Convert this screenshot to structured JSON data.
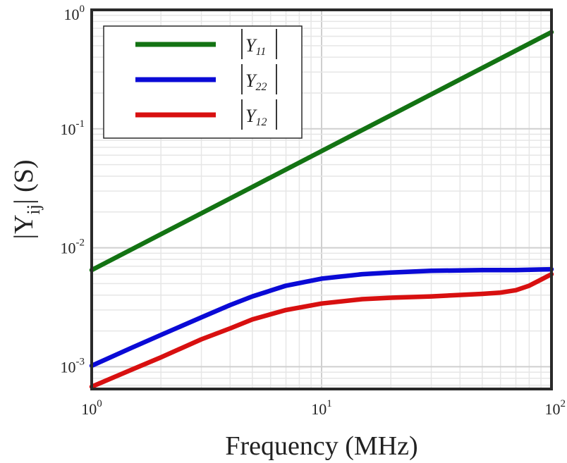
{
  "chart_data": {
    "type": "line",
    "xscale": "log",
    "yscale": "log",
    "xlim": [
      1,
      100
    ],
    "ylim": [
      0.00065,
      1
    ],
    "xlabel": "Frequency (MHz)",
    "ylabel": {
      "prefix": "|Y",
      "sub": "ij",
      "suffix": "| (S)"
    },
    "grid": true,
    "legend": "top-left",
    "x_ticks": [
      {
        "value": 1,
        "base": "10",
        "exp": "0"
      },
      {
        "value": 10,
        "base": "10",
        "exp": "1"
      },
      {
        "value": 100,
        "base": "10",
        "exp": "2"
      }
    ],
    "y_ticks": [
      {
        "value": 0.001,
        "base": "10",
        "exp": "-3"
      },
      {
        "value": 0.01,
        "base": "10",
        "exp": "-2"
      },
      {
        "value": 0.1,
        "base": "10",
        "exp": "-1"
      },
      {
        "value": 1,
        "base": "10",
        "exp": "0"
      }
    ],
    "series": [
      {
        "name": "|Y11|",
        "label_main": "Y",
        "label_sub": "11",
        "color": "#137313",
        "points": [
          [
            1,
            0.0065
          ],
          [
            2,
            0.013
          ],
          [
            5,
            0.0325
          ],
          [
            10,
            0.065
          ],
          [
            20,
            0.13
          ],
          [
            50,
            0.325
          ],
          [
            100,
            0.65
          ]
        ]
      },
      {
        "name": "|Y22|",
        "label_main": "Y",
        "label_sub": "22",
        "color": "#0a0ad6",
        "points": [
          [
            1,
            0.00102
          ],
          [
            1.5,
            0.00145
          ],
          [
            2,
            0.00185
          ],
          [
            3,
            0.0026
          ],
          [
            4,
            0.0033
          ],
          [
            5,
            0.0039
          ],
          [
            7,
            0.0048
          ],
          [
            10,
            0.0055
          ],
          [
            15,
            0.006
          ],
          [
            20,
            0.0062
          ],
          [
            30,
            0.0064
          ],
          [
            50,
            0.0065
          ],
          [
            70,
            0.0065
          ],
          [
            100,
            0.0066
          ]
        ]
      },
      {
        "name": "|Y12|",
        "label_main": "Y",
        "label_sub": "12",
        "color": "#d81010",
        "points": [
          [
            1,
            0.00068
          ],
          [
            1.5,
            0.00095
          ],
          [
            2,
            0.0012
          ],
          [
            3,
            0.0017
          ],
          [
            4,
            0.0021
          ],
          [
            5,
            0.0025
          ],
          [
            7,
            0.003
          ],
          [
            10,
            0.0034
          ],
          [
            15,
            0.0037
          ],
          [
            20,
            0.0038
          ],
          [
            30,
            0.0039
          ],
          [
            50,
            0.0041
          ],
          [
            60,
            0.0042
          ],
          [
            70,
            0.0044
          ],
          [
            80,
            0.0048
          ],
          [
            90,
            0.0054
          ],
          [
            100,
            0.006
          ]
        ]
      }
    ]
  }
}
